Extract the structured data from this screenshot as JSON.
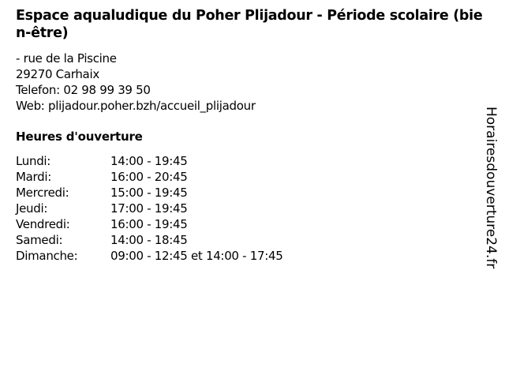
{
  "title": "Espace aqualudique du Poher Plijadour - Période scolaire (bien-être)",
  "address": {
    "street": "- rue de la Piscine",
    "city": "29270 Carhaix",
    "phone": "Telefon: 02 98 99 39 50",
    "web": "Web: plijadour.poher.bzh/accueil_plijadour"
  },
  "hours_heading": "Heures d'ouverture",
  "hours": [
    {
      "day": "Lundi:",
      "time": "14:00 - 19:45"
    },
    {
      "day": "Mardi:",
      "time": "16:00 - 20:45"
    },
    {
      "day": "Mercredi:",
      "time": "15:00 - 19:45"
    },
    {
      "day": "Jeudi:",
      "time": "17:00 - 19:45"
    },
    {
      "day": "Vendredi:",
      "time": "16:00 - 19:45"
    },
    {
      "day": "Samedi:",
      "time": "14:00 - 18:45"
    },
    {
      "day": "Dimanche:",
      "time": "09:00 - 12:45 et 14:00 - 17:45"
    }
  ],
  "watermark": "Horairesdouverture24.fr"
}
